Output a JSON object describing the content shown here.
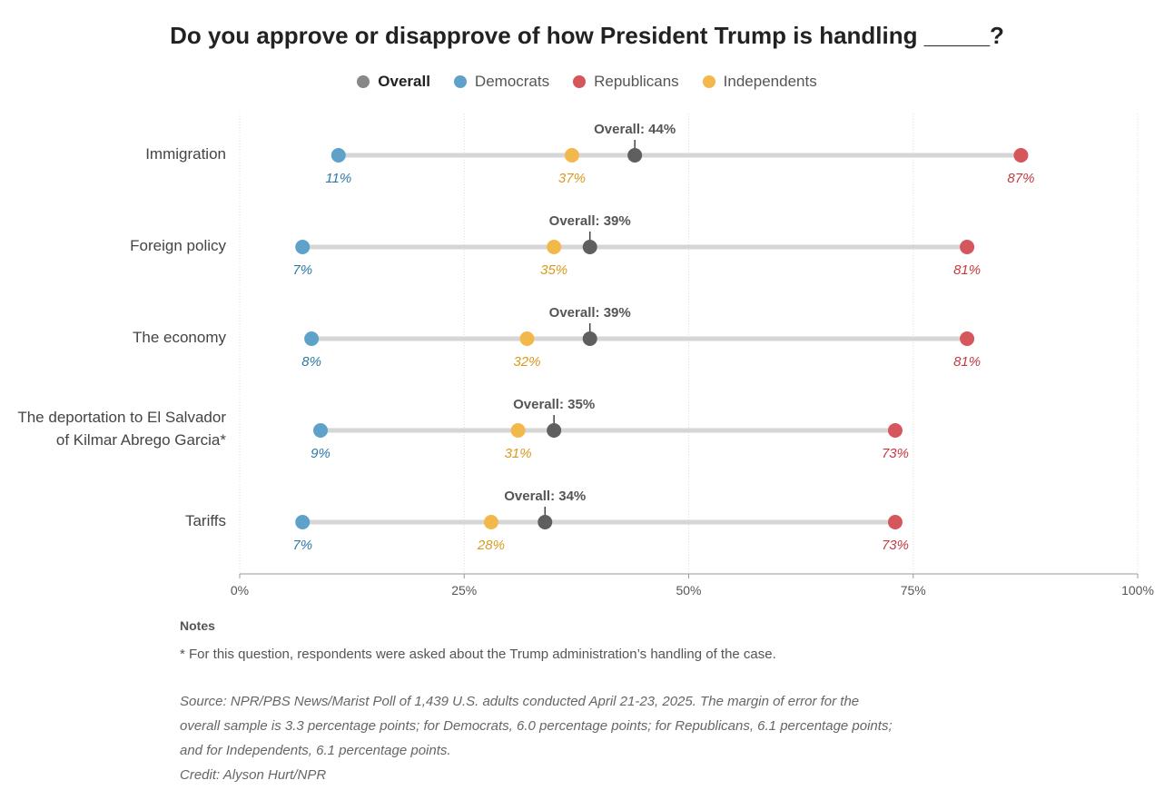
{
  "title": "Do you approve or disapprove of how President Trump is handling _____?",
  "colors": {
    "overall": "#5f5f5f",
    "overall_legend": "#888888",
    "democrats": "#5ea2c9",
    "democrats_label": "#2e78a7",
    "republicans": "#d5565b",
    "republicans_label": "#c23b40",
    "independents": "#f3b84b",
    "independents_label": "#d99a1d",
    "track": "#d6d6d6",
    "grid": "#dddddd"
  },
  "legend": [
    {
      "label": "Overall",
      "color": "#888888"
    },
    {
      "label": "Democrats",
      "color": "#5ea2c9"
    },
    {
      "label": "Republicans",
      "color": "#d5565b"
    },
    {
      "label": "Independents",
      "color": "#f3b84b"
    }
  ],
  "notes": {
    "heading": "Notes",
    "text": "* For this question, respondents were asked about the Trump administration’s handling of the case.",
    "source_lines": [
      "Source: NPR/PBS News/Marist Poll of 1,439 U.S. adults conducted April 21-23, 2025. The margin of error for the",
      "overall sample is 3.3 percentage points; for Democrats, 6.0 percentage points; for Republicans, 6.1 percentage points;",
      "and for Independents, 6.1 percentage points."
    ],
    "credit": "Credit: Alyson Hurt/NPR"
  },
  "chart_data": {
    "type": "scatter",
    "title": "Do you approve or disapprove of how President Trump is handling _____?",
    "xlim": [
      0,
      100
    ],
    "x_ticks": [
      0,
      25,
      50,
      75,
      100
    ],
    "x_tick_labels": [
      "0%",
      "25%",
      "50%",
      "75%",
      "100%"
    ],
    "grid": true,
    "legend_position": "top-center",
    "overall_label_prefix": "Overall: ",
    "categories": [
      [
        "Immigration"
      ],
      [
        "Foreign policy"
      ],
      [
        "The economy"
      ],
      [
        "The deportation to El Salvador",
        "of Kilmar Abrego Garcia*"
      ],
      [
        "Tariffs"
      ]
    ],
    "series": [
      {
        "name": "Overall",
        "values": [
          44,
          39,
          39,
          35,
          34
        ]
      },
      {
        "name": "Democrats",
        "values": [
          11,
          7,
          8,
          9,
          7
        ]
      },
      {
        "name": "Republicans",
        "values": [
          87,
          81,
          81,
          73,
          73
        ]
      },
      {
        "name": "Independents",
        "values": [
          37,
          35,
          32,
          31,
          28
        ]
      }
    ]
  }
}
